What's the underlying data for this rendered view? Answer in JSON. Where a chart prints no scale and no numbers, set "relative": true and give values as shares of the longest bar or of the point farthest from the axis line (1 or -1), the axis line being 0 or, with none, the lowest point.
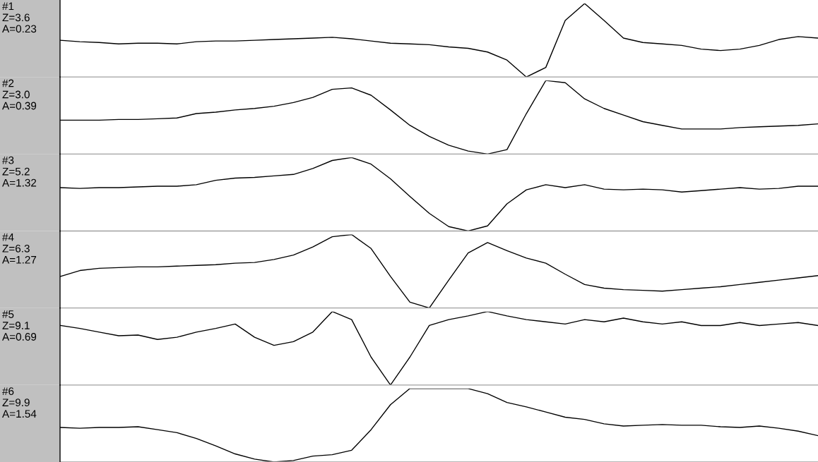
{
  "chart_data": [
    {
      "type": "line",
      "relative": true,
      "annotations": [
        "#1",
        "Z=3.6",
        "A=0.23"
      ],
      "categories": [
        null,
        null,
        null,
        null,
        null,
        null,
        null,
        null,
        null,
        null,
        null,
        null,
        null,
        null,
        null,
        null,
        null,
        null,
        null,
        null,
        null,
        null,
        null,
        null,
        null,
        null,
        null,
        null,
        null,
        null,
        null,
        null,
        null,
        null,
        null,
        null,
        null,
        null,
        null,
        null
      ],
      "series": [
        {
          "color": "#000000",
          "values": [
            0.5,
            0.48,
            0.47,
            0.45,
            0.46,
            0.46,
            0.45,
            0.48,
            0.49,
            0.49,
            0.5,
            0.51,
            0.52,
            0.53,
            0.54,
            0.52,
            0.49,
            0.46,
            0.45,
            0.44,
            0.41,
            0.39,
            0.34,
            0.23,
            0,
            0.13,
            0.77,
            1,
            0.77,
            0.53,
            0.47,
            0.45,
            0.43,
            0.38,
            0.36,
            0.38,
            0.43,
            0.51,
            0.55,
            0.53
          ]
        }
      ]
    },
    {
      "type": "line",
      "relative": true,
      "annotations": [
        "#2",
        "Z=3.0",
        "A=0.39"
      ],
      "categories": [
        null,
        null,
        null,
        null,
        null,
        null,
        null,
        null,
        null,
        null,
        null,
        null,
        null,
        null,
        null,
        null,
        null,
        null,
        null,
        null,
        null,
        null,
        null,
        null,
        null,
        null,
        null,
        null,
        null,
        null,
        null,
        null,
        null,
        null,
        null,
        null,
        null,
        null,
        null,
        null
      ],
      "series": [
        {
          "color": "#000000",
          "values": [
            0.46,
            0.46,
            0.46,
            0.47,
            0.47,
            0.48,
            0.49,
            0.55,
            0.57,
            0.6,
            0.62,
            0.65,
            0.7,
            0.77,
            0.88,
            0.9,
            0.8,
            0.6,
            0.39,
            0.24,
            0.12,
            0.04,
            0,
            0.06,
            0.55,
            1,
            0.97,
            0.75,
            0.62,
            0.53,
            0.44,
            0.39,
            0.34,
            0.34,
            0.34,
            0.36,
            0.37,
            0.38,
            0.39,
            0.41
          ]
        }
      ]
    },
    {
      "type": "line",
      "relative": true,
      "annotations": [
        "#3",
        "Z=5.2",
        "A=1.32"
      ],
      "categories": [
        null,
        null,
        null,
        null,
        null,
        null,
        null,
        null,
        null,
        null,
        null,
        null,
        null,
        null,
        null,
        null,
        null,
        null,
        null,
        null,
        null,
        null,
        null,
        null,
        null,
        null,
        null,
        null,
        null,
        null,
        null,
        null,
        null,
        null,
        null,
        null,
        null,
        null,
        null,
        null
      ],
      "series": [
        {
          "color": "#000000",
          "values": [
            0.59,
            0.58,
            0.59,
            0.59,
            0.6,
            0.61,
            0.61,
            0.63,
            0.69,
            0.72,
            0.73,
            0.75,
            0.77,
            0.85,
            0.96,
            1,
            0.91,
            0.71,
            0.47,
            0.24,
            0.06,
            0,
            0.07,
            0.37,
            0.56,
            0.63,
            0.59,
            0.63,
            0.57,
            0.56,
            0.57,
            0.56,
            0.53,
            0.55,
            0.57,
            0.59,
            0.57,
            0.58,
            0.61,
            0.61
          ]
        }
      ]
    },
    {
      "type": "line",
      "relative": true,
      "annotations": [
        "#4",
        "Z=6.3",
        "A=1.27"
      ],
      "categories": [
        null,
        null,
        null,
        null,
        null,
        null,
        null,
        null,
        null,
        null,
        null,
        null,
        null,
        null,
        null,
        null,
        null,
        null,
        null,
        null,
        null,
        null,
        null,
        null,
        null,
        null,
        null,
        null,
        null,
        null,
        null,
        null,
        null,
        null,
        null,
        null,
        null,
        null,
        null,
        null
      ],
      "series": [
        {
          "color": "#000000",
          "values": [
            0.43,
            0.51,
            0.54,
            0.55,
            0.56,
            0.56,
            0.57,
            0.58,
            0.59,
            0.61,
            0.62,
            0.66,
            0.72,
            0.83,
            0.97,
            1,
            0.81,
            0.43,
            0.08,
            0,
            0.38,
            0.75,
            0.89,
            0.78,
            0.68,
            0.61,
            0.46,
            0.32,
            0.27,
            0.25,
            0.24,
            0.23,
            0.25,
            0.27,
            0.29,
            0.32,
            0.35,
            0.38,
            0.41,
            0.44
          ]
        }
      ]
    },
    {
      "type": "line",
      "relative": true,
      "annotations": [
        "#5",
        "Z=9.1",
        "A=0.69"
      ],
      "categories": [
        null,
        null,
        null,
        null,
        null,
        null,
        null,
        null,
        null,
        null,
        null,
        null,
        null,
        null,
        null,
        null,
        null,
        null,
        null,
        null,
        null,
        null,
        null,
        null,
        null,
        null,
        null,
        null,
        null,
        null,
        null,
        null,
        null,
        null,
        null,
        null,
        null,
        null,
        null,
        null
      ],
      "series": [
        {
          "color": "#000000",
          "values": [
            0.81,
            0.77,
            0.72,
            0.67,
            0.68,
            0.62,
            0.65,
            0.72,
            0.77,
            0.83,
            0.65,
            0.54,
            0.59,
            0.72,
            1,
            0.89,
            0.38,
            0,
            0.38,
            0.81,
            0.89,
            0.94,
            1,
            0.94,
            0.89,
            0.86,
            0.83,
            0.89,
            0.86,
            0.91,
            0.86,
            0.83,
            0.86,
            0.81,
            0.81,
            0.85,
            0.81,
            0.83,
            0.85,
            0.81
          ]
        }
      ]
    },
    {
      "type": "line",
      "relative": true,
      "annotations": [
        "#6",
        "Z=9.9",
        "A=1.54"
      ],
      "categories": [
        null,
        null,
        null,
        null,
        null,
        null,
        null,
        null,
        null,
        null,
        null,
        null,
        null,
        null,
        null,
        null,
        null,
        null,
        null,
        null,
        null,
        null,
        null,
        null,
        null,
        null,
        null,
        null,
        null,
        null,
        null,
        null,
        null,
        null,
        null,
        null,
        null,
        null,
        null,
        null
      ],
      "series": [
        {
          "color": "#000000",
          "values": [
            0.47,
            0.46,
            0.47,
            0.47,
            0.48,
            0.44,
            0.4,
            0.32,
            0.22,
            0.11,
            0.04,
            0,
            0.02,
            0.08,
            0.1,
            0.16,
            0.44,
            0.78,
            1,
            1,
            1,
            1,
            0.93,
            0.81,
            0.75,
            0.68,
            0.61,
            0.58,
            0.52,
            0.49,
            0.5,
            0.51,
            0.5,
            0.5,
            0.48,
            0.47,
            0.49,
            0.46,
            0.42,
            0.36
          ]
        }
      ]
    }
  ]
}
